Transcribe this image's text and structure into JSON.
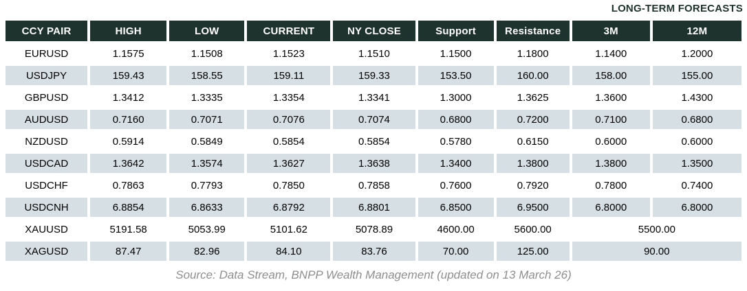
{
  "title": "LONG-TERM FORECASTS",
  "table": {
    "columns": [
      "CCY PAIR",
      "HIGH",
      "LOW",
      "CURRENT",
      "NY CLOSE",
      "Support",
      "Resistance",
      "3M",
      "12M"
    ],
    "rows": [
      {
        "cells": [
          "EURUSD",
          "1.1575",
          "1.1508",
          "1.1523",
          "1.1510",
          "1.1500",
          "1.1800",
          "1.1400",
          "1.2000"
        ],
        "merged_forecast": false
      },
      {
        "cells": [
          "USDJPY",
          "159.43",
          "158.55",
          "159.11",
          "159.33",
          "153.50",
          "160.00",
          "158.00",
          "155.00"
        ],
        "merged_forecast": false
      },
      {
        "cells": [
          "GBPUSD",
          "1.3412",
          "1.3335",
          "1.3354",
          "1.3341",
          "1.3000",
          "1.3625",
          "1.3600",
          "1.4300"
        ],
        "merged_forecast": false
      },
      {
        "cells": [
          "AUDUSD",
          "0.7160",
          "0.7071",
          "0.7076",
          "0.7074",
          "0.6800",
          "0.7200",
          "0.7100",
          "0.6800"
        ],
        "merged_forecast": false
      },
      {
        "cells": [
          "NZDUSD",
          "0.5914",
          "0.5849",
          "0.5854",
          "0.5854",
          "0.5780",
          "0.6150",
          "0.6000",
          "0.6000"
        ],
        "merged_forecast": false
      },
      {
        "cells": [
          "USDCAD",
          "1.3642",
          "1.3574",
          "1.3627",
          "1.3638",
          "1.3400",
          "1.3800",
          "1.3800",
          "1.3500"
        ],
        "merged_forecast": false
      },
      {
        "cells": [
          "USDCHF",
          "0.7863",
          "0.7793",
          "0.7850",
          "0.7858",
          "0.7600",
          "0.7920",
          "0.7800",
          "0.7400"
        ],
        "merged_forecast": false
      },
      {
        "cells": [
          "USDCNH",
          "6.8854",
          "6.8633",
          "6.8792",
          "6.8801",
          "6.8500",
          "6.9500",
          "6.8000",
          "6.8000"
        ],
        "merged_forecast": false
      },
      {
        "cells": [
          "XAUUSD",
          "5191.58",
          "5053.99",
          "5101.62",
          "5078.89",
          "4600.00",
          "5600.00",
          "5500.00"
        ],
        "merged_forecast": true
      },
      {
        "cells": [
          "XAGUSD",
          "87.47",
          "82.96",
          "84.10",
          "83.76",
          "70.00",
          "125.00",
          "90.00"
        ],
        "merged_forecast": true
      }
    ]
  },
  "footer": "Source: Data Stream, BNPP Wealth Management (updated on 13 March 26)",
  "colors": {
    "header_background": "#1e332d",
    "header_text": "#ffffff",
    "shaded_row_background": "#d6dfe3",
    "title_text": "#1d332c",
    "source_text": "#8e8e8e"
  }
}
